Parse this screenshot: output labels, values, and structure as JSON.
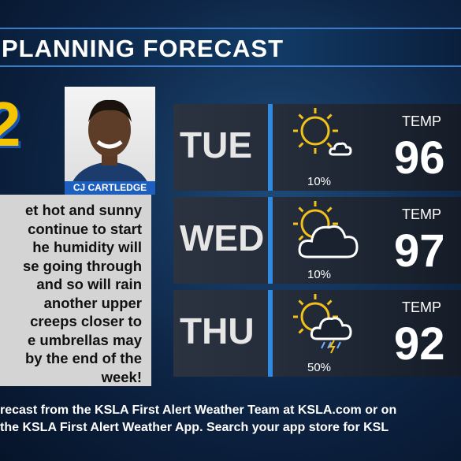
{
  "header": {
    "title": "PLANNING FORECAST"
  },
  "logo": {
    "text": "2"
  },
  "presenter": {
    "name": "CJ CARTLEDGE"
  },
  "discussion": {
    "lines": [
      "et hot and sunny",
      "continue to start",
      "he humidity will",
      "se going through",
      "and so will rain",
      "another upper",
      "creeps closer to",
      "e umbrellas may",
      "by the end of the",
      "week!"
    ]
  },
  "forecast": [
    {
      "day": "TUE",
      "rain_chance": "10%",
      "temp_label": "TEMP",
      "temp": "96",
      "icon": "sun-cloud"
    },
    {
      "day": "WED",
      "rain_chance": "10%",
      "temp_label": "TEMP",
      "temp": "97",
      "icon": "partly-cloudy"
    },
    {
      "day": "THU",
      "rain_chance": "50%",
      "temp_label": "TEMP",
      "temp": "92",
      "icon": "storm"
    }
  ],
  "footer": {
    "lines": [
      "recast from the KSLA First Alert Weather Team at KSLA.com or on",
      "the KSLA First Alert Weather App. Search your app store for KSL"
    ]
  }
}
